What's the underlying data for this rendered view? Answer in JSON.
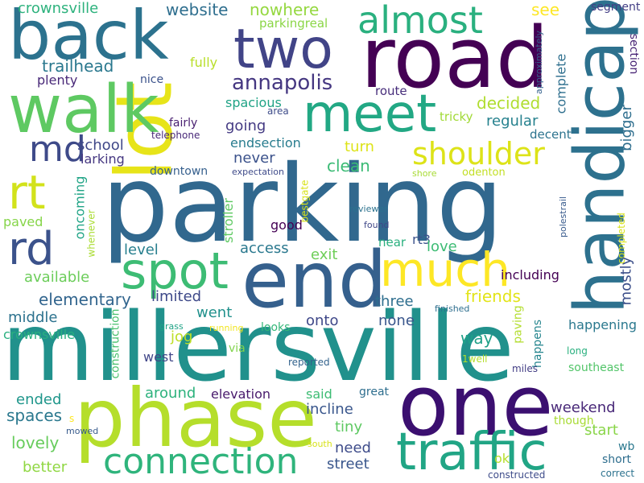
{
  "words": [
    {
      "text": "parking",
      "color": "#31688e"
    },
    {
      "text": "millersville",
      "color": "#21918c"
    },
    {
      "text": "road",
      "color": "#440154"
    },
    {
      "text": "phase",
      "color": "#b5de2b"
    },
    {
      "text": "one",
      "color": "#3b0f70"
    },
    {
      "text": "end",
      "color": "#35608d"
    },
    {
      "text": "lot",
      "color": "#e7e419"
    },
    {
      "text": "back",
      "color": "#2c728e"
    },
    {
      "text": "walk",
      "color": "#5ec962"
    },
    {
      "text": "handicap",
      "color": "#2d718e"
    },
    {
      "text": "two",
      "color": "#414487"
    },
    {
      "text": "traffic",
      "color": "#21a585"
    },
    {
      "text": "meet",
      "color": "#22a884"
    },
    {
      "text": "spot",
      "color": "#3dbc74"
    },
    {
      "text": "much",
      "color": "#fde725"
    },
    {
      "text": "connection",
      "color": "#2fb47c"
    },
    {
      "text": "almost",
      "color": "#2ab07f"
    },
    {
      "text": "shoulder",
      "color": "#dde318"
    },
    {
      "text": "rt",
      "color": "#d2e21b"
    },
    {
      "text": "rd",
      "color": "#3b528b"
    },
    {
      "text": "md",
      "color": "#3e4a89"
    },
    {
      "text": "annapolis",
      "color": "#453781"
    },
    {
      "text": "trailhead",
      "color": "#2a788e"
    },
    {
      "text": "plenty",
      "color": "#482878"
    },
    {
      "text": "website",
      "color": "#2e6e8e"
    },
    {
      "text": "nowhere",
      "color": "#95d840"
    },
    {
      "text": "see",
      "color": "#fde725"
    },
    {
      "text": "fully",
      "color": "#b8de29"
    },
    {
      "text": "nice",
      "color": "#3b528b"
    },
    {
      "text": "crownsville",
      "color": "#2db27d"
    },
    {
      "text": "parkingreal",
      "color": "#8bd646"
    },
    {
      "text": "segment",
      "color": "#433e85"
    },
    {
      "text": "section",
      "color": "#482475"
    },
    {
      "text": "approximately",
      "color": "#34618d"
    },
    {
      "text": "route",
      "color": "#472d7b"
    },
    {
      "text": "area",
      "color": "#3e4c8a"
    },
    {
      "text": "spacious",
      "color": "#20a386"
    },
    {
      "text": "decided",
      "color": "#b0dd2f"
    },
    {
      "text": "complete",
      "color": "#2e6f8e"
    },
    {
      "text": "regular",
      "color": "#26818e"
    },
    {
      "text": "tricky",
      "color": "#a2da37"
    },
    {
      "text": "decent",
      "color": "#2c738e"
    },
    {
      "text": "going",
      "color": "#443a83"
    },
    {
      "text": "fairly",
      "color": "#481f70"
    },
    {
      "text": "telephone",
      "color": "#482878"
    },
    {
      "text": "school",
      "color": "#3f4788"
    },
    {
      "text": "endsection",
      "color": "#287c8e"
    },
    {
      "text": "larking",
      "color": "#453781"
    },
    {
      "text": "turn",
      "color": "#dde318"
    },
    {
      "text": "never",
      "color": "#3b528b"
    },
    {
      "text": "clean",
      "color": "#3bbb75"
    },
    {
      "text": "bigger",
      "color": "#2e6e8e"
    },
    {
      "text": "downtown",
      "color": "#355f8d"
    },
    {
      "text": "expectation",
      "color": "#3e4a89"
    },
    {
      "text": "bestgate",
      "color": "#d8e219"
    },
    {
      "text": "shore",
      "color": "#a8db34"
    },
    {
      "text": "odenton",
      "color": "#c2df23"
    },
    {
      "text": "oncoming",
      "color": "#20a486"
    },
    {
      "text": "stroller",
      "color": "#5ec962"
    },
    {
      "text": "paved",
      "color": "#86d549"
    },
    {
      "text": "whenever",
      "color": "#aadc32"
    },
    {
      "text": "good",
      "color": "#440154"
    },
    {
      "text": "reviewer",
      "color": "#2c728e"
    },
    {
      "text": "found",
      "color": "#3f4788"
    },
    {
      "text": "rt3",
      "color": "#3b528b"
    },
    {
      "text": "polestrail",
      "color": "#375a8c"
    },
    {
      "text": "completed",
      "color": "#d8e219"
    },
    {
      "text": "level",
      "color": "#277f8e"
    },
    {
      "text": "access",
      "color": "#2a788e"
    },
    {
      "text": "near",
      "color": "#2ab07f"
    },
    {
      "text": "exit",
      "color": "#6ece58"
    },
    {
      "text": "love",
      "color": "#3dbc74"
    },
    {
      "text": "available",
      "color": "#6ccd5a"
    },
    {
      "text": "including",
      "color": "#440154"
    },
    {
      "text": "mostly",
      "color": "#3c4f8a"
    },
    {
      "text": "limited",
      "color": "#3e4989"
    },
    {
      "text": "elementary",
      "color": "#32658e"
    },
    {
      "text": "friends",
      "color": "#e2e418"
    },
    {
      "text": "three",
      "color": "#2e6e8e"
    },
    {
      "text": "went",
      "color": "#21918c"
    },
    {
      "text": "grass",
      "color": "#20a386"
    },
    {
      "text": "middle",
      "color": "#2c728e"
    },
    {
      "text": "onto",
      "color": "#3f4889"
    },
    {
      "text": "none",
      "color": "#39568c"
    },
    {
      "text": "way",
      "color": "#1fa088"
    },
    {
      "text": "jog",
      "color": "#bddf26"
    },
    {
      "text": "running",
      "color": "#f1e51d"
    },
    {
      "text": "looks",
      "color": "#35b779"
    },
    {
      "text": "finished",
      "color": "#2e6e8e"
    },
    {
      "text": "happening",
      "color": "#2a788e"
    },
    {
      "text": "paving",
      "color": "#b2dd2d"
    },
    {
      "text": "happens",
      "color": "#25858e"
    },
    {
      "text": "construction",
      "color": "#4ac16d"
    },
    {
      "text": "via",
      "color": "#81d34d"
    },
    {
      "text": "crownsville",
      "color": "#29af7f"
    },
    {
      "text": "west",
      "color": "#404688"
    },
    {
      "text": "reported",
      "color": "#33638d"
    },
    {
      "text": "1well",
      "color": "#b5de2b"
    },
    {
      "text": "long",
      "color": "#2ab07f"
    },
    {
      "text": "miles",
      "color": "#433e85"
    },
    {
      "text": "southeast",
      "color": "#52c569"
    },
    {
      "text": "around",
      "color": "#2db27d"
    },
    {
      "text": "elevation",
      "color": "#481a6c"
    },
    {
      "text": "said",
      "color": "#3dbc74"
    },
    {
      "text": "great",
      "color": "#2e6e8e"
    },
    {
      "text": "incline",
      "color": "#39568c"
    },
    {
      "text": "ended",
      "color": "#1f968b"
    },
    {
      "text": "spaces",
      "color": "#2a788e"
    },
    {
      "text": "weekend",
      "color": "#482878"
    },
    {
      "text": "though",
      "color": "#a8db34"
    },
    {
      "text": "tiny",
      "color": "#5ec962"
    },
    {
      "text": "start",
      "color": "#89d548"
    },
    {
      "text": "lovely",
      "color": "#67cc5c"
    },
    {
      "text": "s",
      "color": "#fde725"
    },
    {
      "text": "mowed",
      "color": "#375a8c"
    },
    {
      "text": "need",
      "color": "#3e4c8a"
    },
    {
      "text": "south",
      "color": "#d8e219"
    },
    {
      "text": "wb",
      "color": "#2a788e"
    },
    {
      "text": "short",
      "color": "#2e6e8e"
    },
    {
      "text": "better",
      "color": "#90d743"
    },
    {
      "text": "street",
      "color": "#39568c"
    },
    {
      "text": "ok",
      "color": "#b5de2b"
    },
    {
      "text": "constructed",
      "color": "#3e4c8a"
    },
    {
      "text": "correct",
      "color": "#2c728e"
    }
  ]
}
